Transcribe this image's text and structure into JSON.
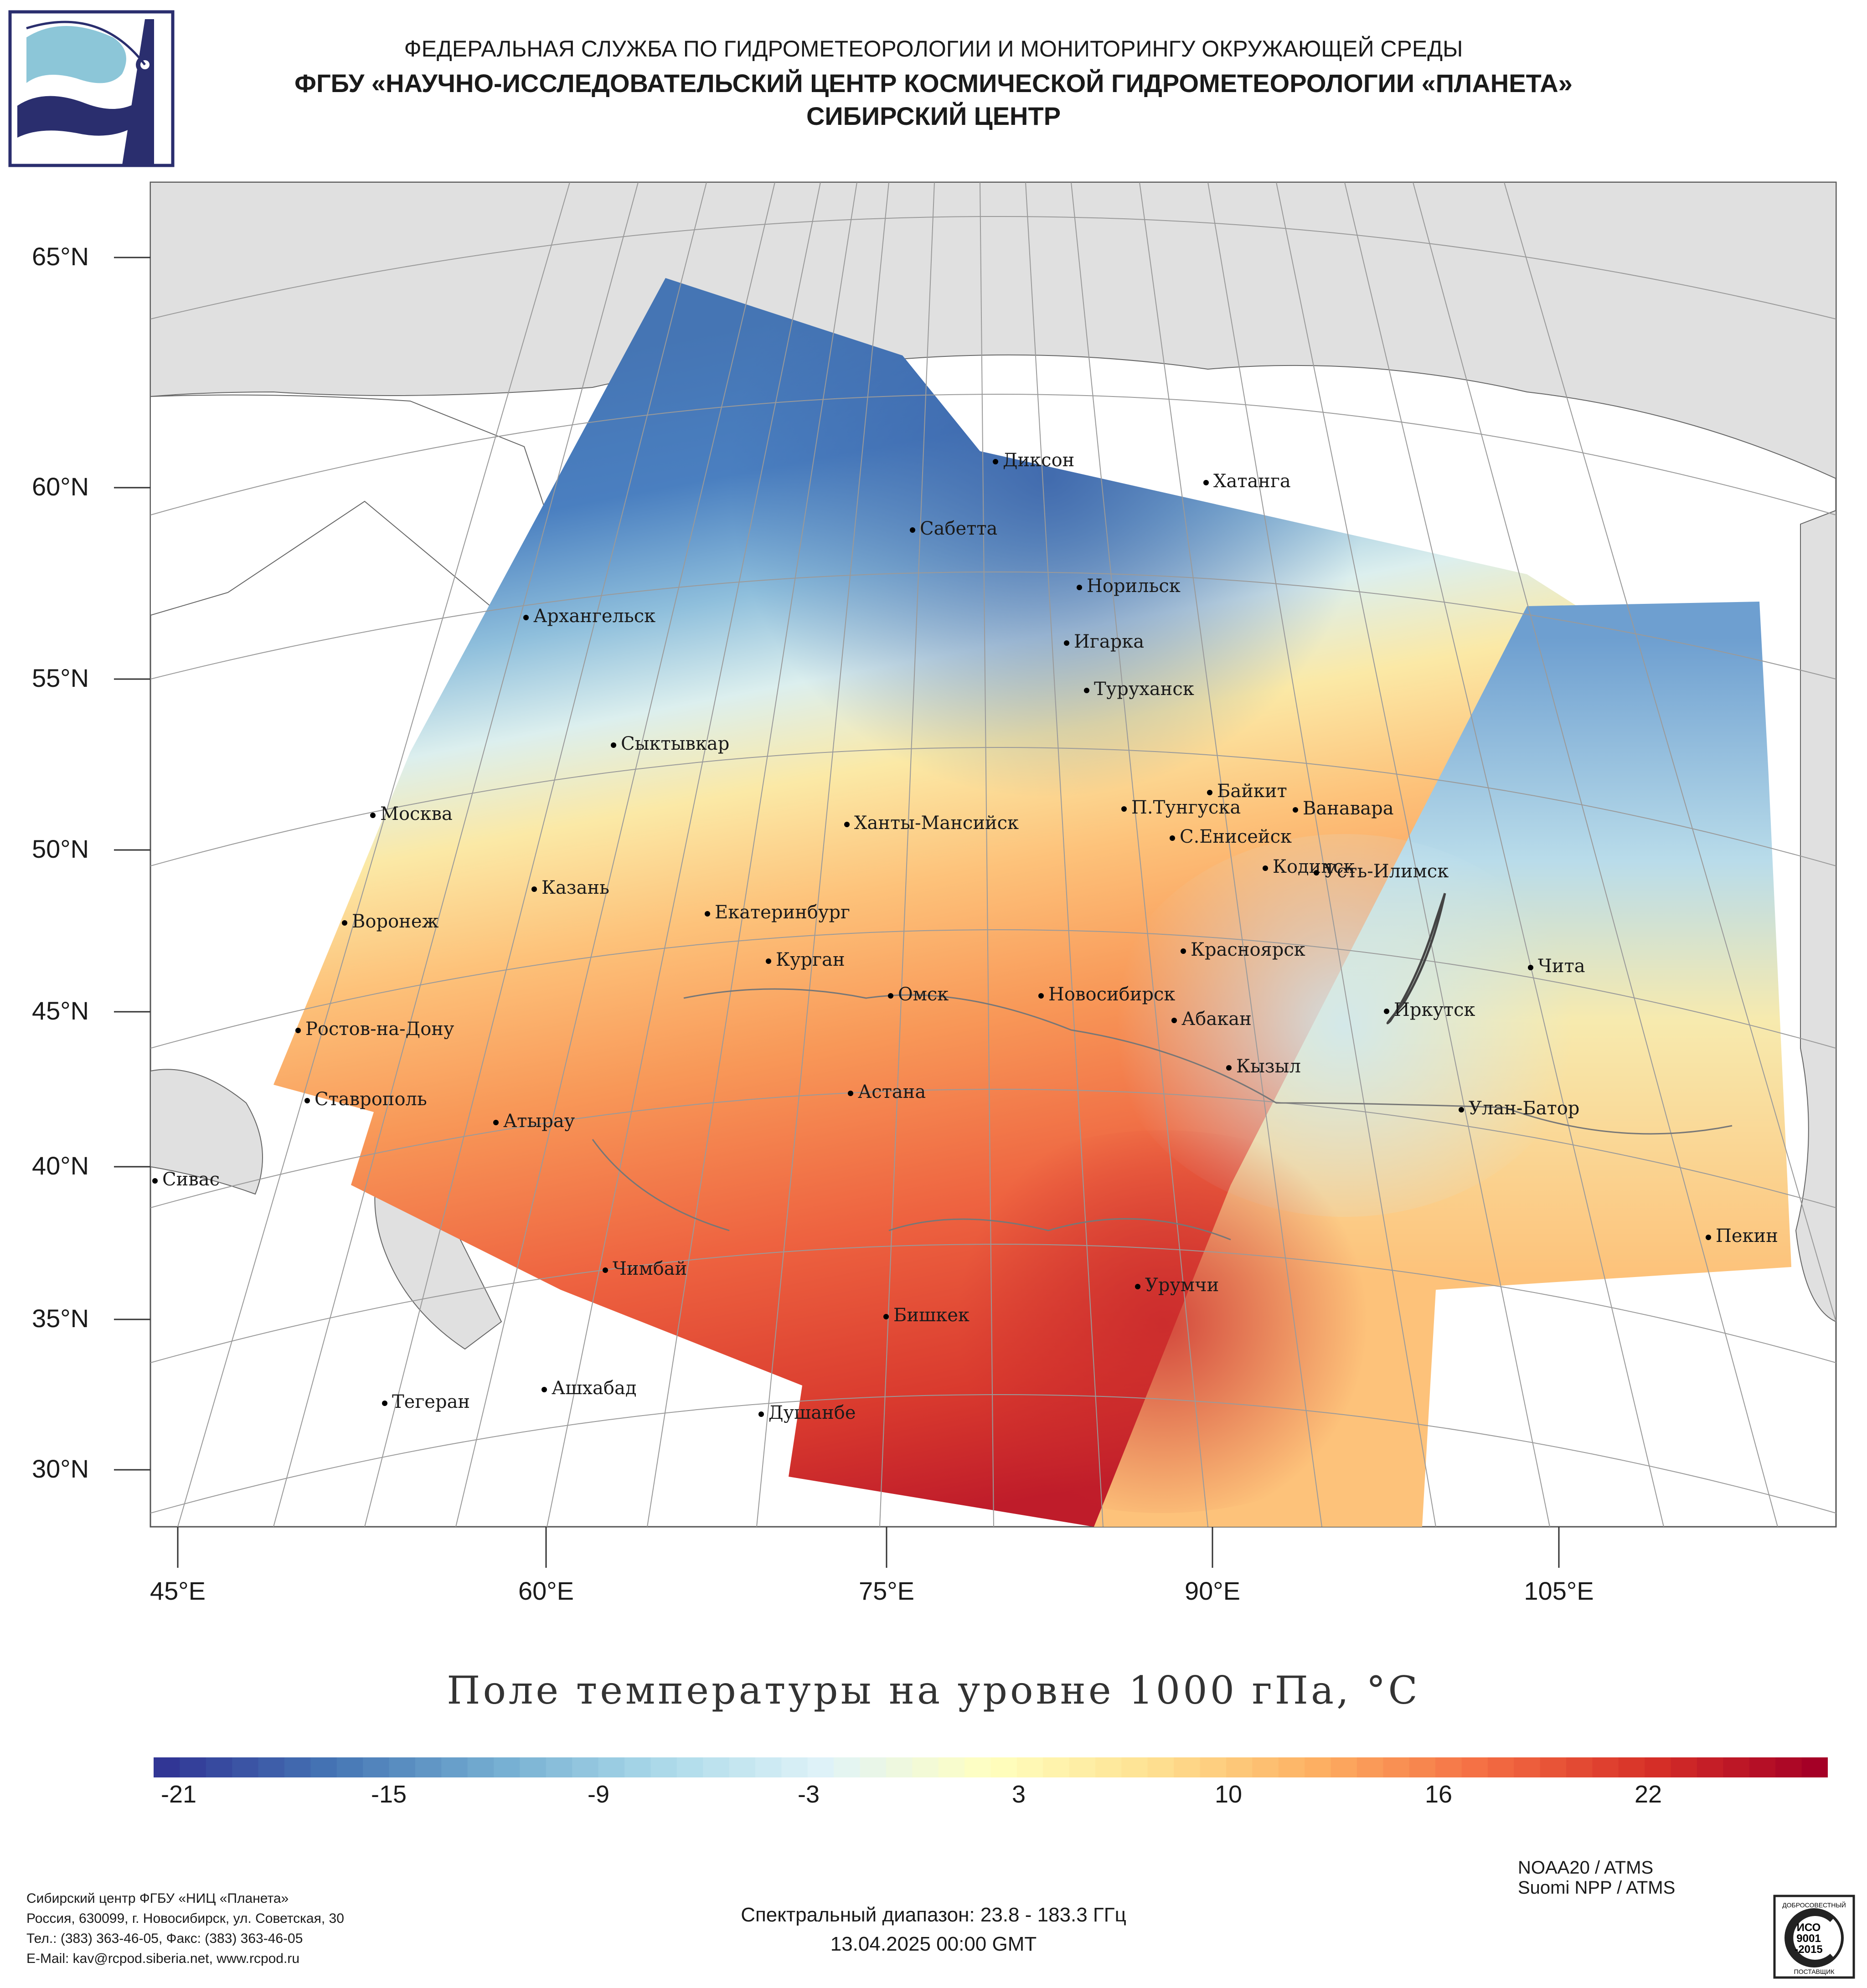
{
  "header": {
    "line1": "ФЕДЕРАЛЬНАЯ СЛУЖБА ПО ГИДРОМЕТЕОРОЛОГИИ И МОНИТОРИНГУ ОКРУЖАЮЩЕЙ СРЕДЫ",
    "line2": "ФГБУ «НАУЧНО-ИССЛЕДОВАТЕЛЬСКИЙ ЦЕНТР КОСМИЧЕСКОЙ ГИДРОМЕТЕОРОЛОГИИ «ПЛАНЕТА»",
    "line3": "СИБИРСКИЙ ЦЕНТР"
  },
  "map": {
    "lat_labels": [
      "65°N",
      "60°N",
      "55°N",
      "50°N",
      "45°N",
      "40°N",
      "35°N",
      "30°N"
    ],
    "lon_labels": [
      "45°E",
      "60°E",
      "75°E",
      "90°E",
      "105°E"
    ],
    "cities": [
      "Диксон",
      "Хатанга",
      "Сабетта",
      "Норильск",
      "Архангельск",
      "Игарка",
      "Туруханск",
      "Сыктывкар",
      "Байкит",
      "Москва",
      "П.Тунгуска",
      "Ванавара",
      "Ханты-Мансийск",
      "С.Енисейск",
      "Кодинск",
      "Усть-Илимск",
      "Казань",
      "Екатеринбург",
      "Воронеж",
      "Красноярск",
      "Курган",
      "Чита",
      "Омск",
      "Новосибирск",
      "Иркутск",
      "Абакан",
      "Ростов-на-Дону",
      "Кызыл",
      "Астана",
      "Ставрополь",
      "Улан-Батор",
      "Атырау",
      "Сивас",
      "Пекин",
      "Чимбай",
      "Урумчи",
      "Бишкек",
      "Ашхабад",
      "Тегеран",
      "Душанбе"
    ]
  },
  "colorbar": {
    "title": "Поле температуры на уровне 1000 гПа, °C",
    "ticks": [
      "-21",
      "-15",
      "-9",
      "-3",
      "3",
      "10",
      "16",
      "22"
    ],
    "colors": [
      "#313695",
      "#4575b4",
      "#74add1",
      "#abd9e9",
      "#e0f3f8",
      "#ffffbf",
      "#fee090",
      "#fdae61",
      "#f46d43",
      "#d73027",
      "#a50026"
    ]
  },
  "satellites": [
    "NOAA20 / ATMS",
    "Suomi NPP / ATMS"
  ],
  "footer": {
    "lines": [
      "Сибирский центр ФГБУ «НИЦ «Планета»",
      "Россия, 630099, г. Новосибирск, ул. Советская, 30",
      "Тел.: (383) 363-46-05, Факс: (383) 363-46-05",
      "E-Mail: kav@rcpod.siberia.net, www.rcpod.ru"
    ],
    "spectral": "Спектральный диапазон: 23.8 - 183.3 ГГц",
    "datetime": "13.04.2025 00:00 GMT"
  },
  "iso_badge": {
    "top": "ДОБРОСОВЕСТНЫЙ",
    "code1": "ИСО",
    "code2": "9001",
    "code3": "-2015",
    "bottom": "ПОСТАВЩИК"
  }
}
